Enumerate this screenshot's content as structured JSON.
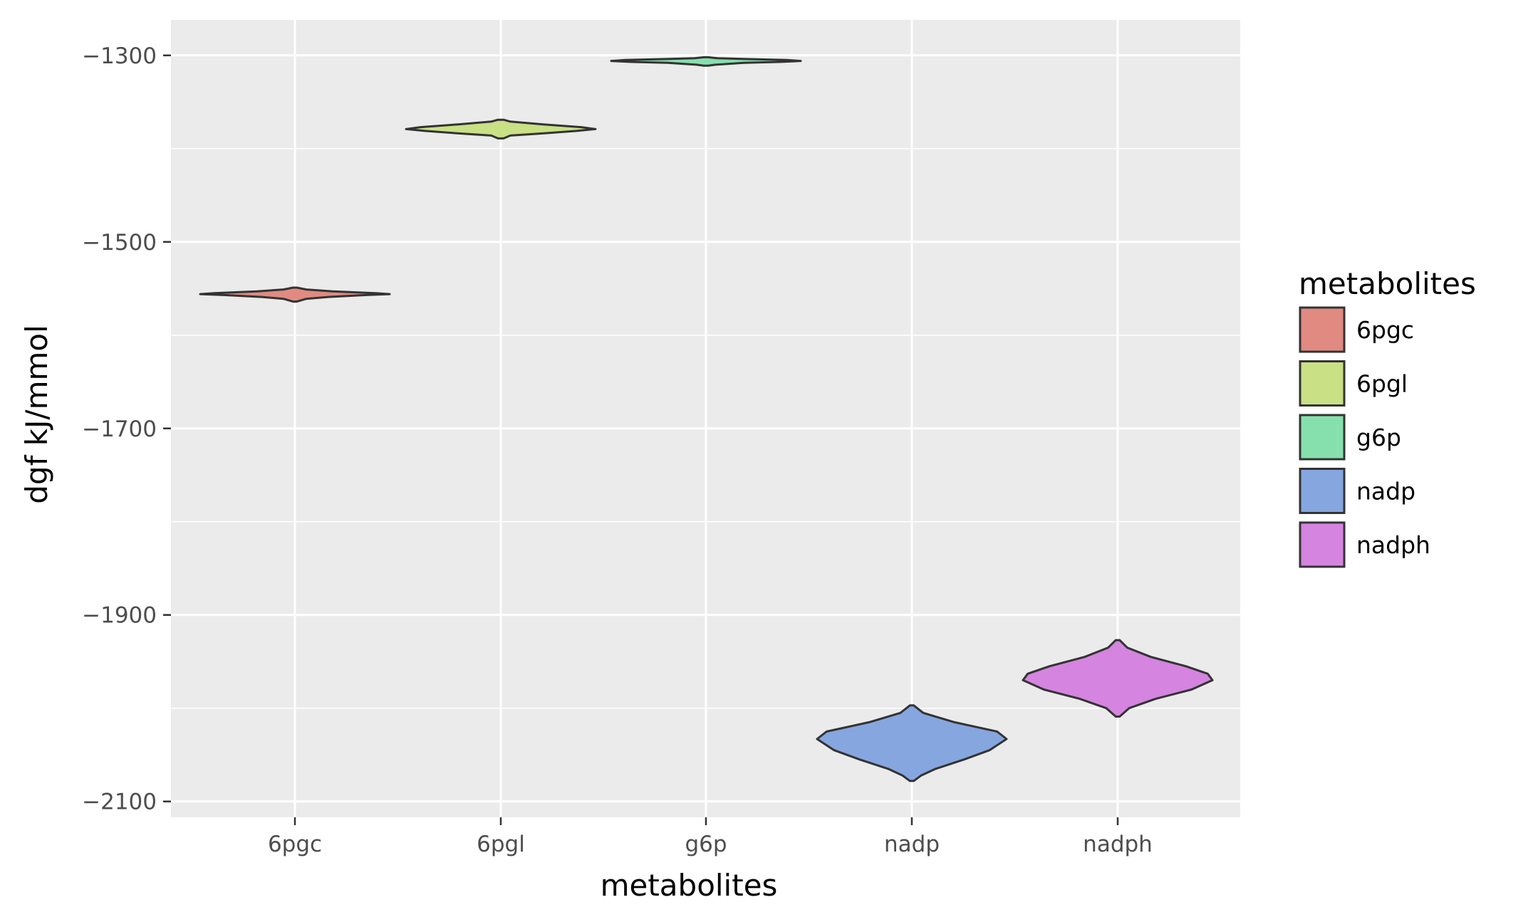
{
  "chart_data": {
    "type": "violin",
    "xlabel": "metabolites",
    "ylabel": "dgf kJ/mmol",
    "ylim": [
      -2117,
      -1262
    ],
    "y_ticks": [
      -1300,
      -1500,
      -1700,
      -1900,
      -2100
    ],
    "y_tick_labels": [
      "−1300",
      "−1500",
      "−1700",
      "−1900",
      "−2100"
    ],
    "y_minor_ticks": [
      -1400,
      -1600,
      -1800,
      -2000
    ],
    "categories": [
      "6pgc",
      "6pgl",
      "g6p",
      "nadp",
      "nadph"
    ],
    "grid": true,
    "legend": {
      "title": "metabolites",
      "position": "right",
      "entries": [
        "6pgc",
        "6pgl",
        "g6p",
        "nadp",
        "nadph"
      ]
    },
    "series": [
      {
        "category": "6pgc",
        "color": "#e08a82",
        "min": -1564,
        "max": -1549,
        "median": -1556,
        "profile": [
          [
            -1549,
            0.02
          ],
          [
            -1551,
            0.12
          ],
          [
            -1553,
            0.4
          ],
          [
            -1555,
            0.85
          ],
          [
            -1556,
            1.0
          ],
          [
            -1557,
            0.75
          ],
          [
            -1559,
            0.35
          ],
          [
            -1561,
            0.12
          ],
          [
            -1564,
            0.02
          ]
        ]
      },
      {
        "category": "6pgl",
        "color": "#c9e084",
        "min": -1389,
        "max": -1369,
        "median": -1379,
        "profile": [
          [
            -1369,
            0.03
          ],
          [
            -1371,
            0.1
          ],
          [
            -1374,
            0.45
          ],
          [
            -1377,
            0.85
          ],
          [
            -1379,
            1.0
          ],
          [
            -1381,
            0.8
          ],
          [
            -1384,
            0.4
          ],
          [
            -1386,
            0.1
          ],
          [
            -1389,
            0.03
          ]
        ]
      },
      {
        "category": "g6p",
        "color": "#86e0ad",
        "min": -1311,
        "max": -1302,
        "median": -1306,
        "profile": [
          [
            -1302,
            0.02
          ],
          [
            -1303,
            0.12
          ],
          [
            -1304,
            0.45
          ],
          [
            -1305,
            0.85
          ],
          [
            -1306,
            1.0
          ],
          [
            -1307,
            0.8
          ],
          [
            -1308,
            0.4
          ],
          [
            -1310,
            0.1
          ],
          [
            -1311,
            0.02
          ]
        ]
      },
      {
        "category": "nadp",
        "color": "#86a6e0",
        "min": -2078,
        "max": -1997,
        "median": -2035,
        "profile": [
          [
            -1997,
            0.02
          ],
          [
            -2005,
            0.12
          ],
          [
            -2015,
            0.45
          ],
          [
            -2025,
            0.9
          ],
          [
            -2033,
            1.0
          ],
          [
            -2045,
            0.82
          ],
          [
            -2055,
            0.55
          ],
          [
            -2065,
            0.25
          ],
          [
            -2072,
            0.1
          ],
          [
            -2078,
            0.02
          ]
        ]
      },
      {
        "category": "nadph",
        "color": "#d584e0",
        "min": -2009,
        "max": -1927,
        "median": -1967,
        "profile": [
          [
            -1927,
            0.02
          ],
          [
            -1935,
            0.1
          ],
          [
            -1945,
            0.35
          ],
          [
            -1955,
            0.72
          ],
          [
            -1963,
            0.95
          ],
          [
            -1970,
            1.0
          ],
          [
            -1980,
            0.78
          ],
          [
            -1990,
            0.4
          ],
          [
            -2000,
            0.12
          ],
          [
            -2009,
            0.02
          ]
        ]
      }
    ]
  }
}
